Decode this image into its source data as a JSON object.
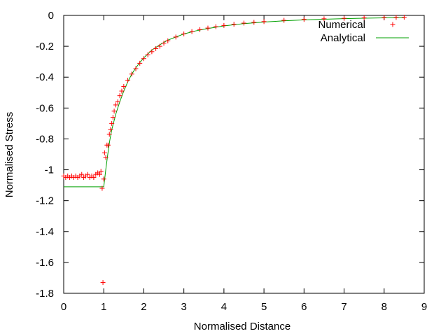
{
  "chart_data": {
    "type": "scatter",
    "xlabel": "Normalised Distance",
    "ylabel": "Normalised Stress",
    "xlim": [
      0,
      9
    ],
    "ylim": [
      -1.8,
      0
    ],
    "xticks": [
      "0",
      "1",
      "2",
      "3",
      "4",
      "5",
      "6",
      "7",
      "8",
      "9"
    ],
    "yticks": [
      "0",
      "-0.2",
      "-0.4",
      "-0.6",
      "-0.8",
      "-1",
      "-1.2",
      "-1.4",
      "-1.6",
      "-1.8"
    ],
    "grid": false,
    "legend_position": "top-right",
    "colors": {
      "numerical": "#ff0000",
      "analytical": "#00a000"
    },
    "series": [
      {
        "name": "Numerical",
        "style": "points-plus",
        "x": [
          0.0,
          0.05,
          0.1,
          0.15,
          0.2,
          0.25,
          0.3,
          0.35,
          0.4,
          0.45,
          0.5,
          0.55,
          0.6,
          0.65,
          0.7,
          0.75,
          0.8,
          0.85,
          0.9,
          0.93,
          0.96,
          0.98,
          1.0,
          1.02,
          1.05,
          1.08,
          1.11,
          1.14,
          1.17,
          1.2,
          1.23,
          1.26,
          1.3,
          1.35,
          1.4,
          1.45,
          1.5,
          1.6,
          1.7,
          1.8,
          1.9,
          2.0,
          2.1,
          2.2,
          2.3,
          2.4,
          2.5,
          2.6,
          2.8,
          3.0,
          3.2,
          3.4,
          3.6,
          3.8,
          4.0,
          4.25,
          4.5,
          4.75,
          5.0,
          5.5,
          6.0,
          6.5,
          7.0,
          7.5,
          8.0,
          8.3,
          8.5
        ],
        "y": [
          -1.04,
          -1.05,
          -1.04,
          -1.05,
          -1.04,
          -1.05,
          -1.04,
          -1.05,
          -1.04,
          -1.03,
          -1.05,
          -1.04,
          -1.03,
          -1.05,
          -1.04,
          -1.05,
          -1.03,
          -1.02,
          -1.03,
          -1.01,
          -1.12,
          -1.73,
          -1.06,
          -0.89,
          -0.92,
          -0.84,
          -0.84,
          -0.77,
          -0.74,
          -0.7,
          -0.66,
          -0.62,
          -0.58,
          -0.56,
          -0.52,
          -0.49,
          -0.46,
          -0.42,
          -0.38,
          -0.345,
          -0.31,
          -0.28,
          -0.255,
          -0.235,
          -0.215,
          -0.2,
          -0.18,
          -0.165,
          -0.14,
          -0.12,
          -0.105,
          -0.092,
          -0.082,
          -0.073,
          -0.065,
          -0.057,
          -0.05,
          -0.045,
          -0.04,
          -0.032,
          -0.026,
          -0.022,
          -0.019,
          -0.016,
          -0.014,
          -0.013,
          -0.012
        ]
      },
      {
        "name": "Analytical",
        "style": "line",
        "x": [
          0.0,
          1.0,
          1.05,
          1.1,
          1.15,
          1.2,
          1.3,
          1.4,
          1.5,
          1.6,
          1.7,
          1.8,
          1.9,
          2.0,
          2.2,
          2.4,
          2.6,
          2.8,
          3.0,
          3.3,
          3.6,
          4.0,
          4.5,
          5.0,
          5.5,
          6.0,
          6.5,
          7.0,
          7.5,
          8.0,
          8.5
        ],
        "y": [
          -1.11,
          -1.11,
          -1.0,
          -0.9,
          -0.81,
          -0.74,
          -0.64,
          -0.56,
          -0.49,
          -0.43,
          -0.38,
          -0.34,
          -0.305,
          -0.275,
          -0.225,
          -0.19,
          -0.16,
          -0.14,
          -0.12,
          -0.1,
          -0.085,
          -0.068,
          -0.053,
          -0.043,
          -0.035,
          -0.029,
          -0.025,
          -0.021,
          -0.018,
          -0.016,
          -0.014
        ]
      }
    ]
  }
}
